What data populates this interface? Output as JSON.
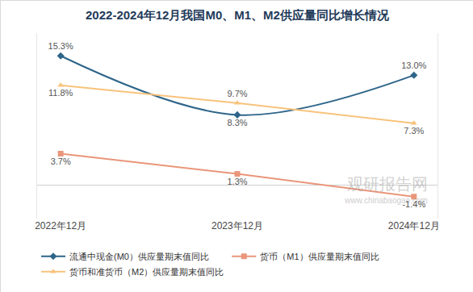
{
  "chart_data": {
    "type": "line",
    "title": "2022-2024年12月我国M0、M1、M2供应量同比增长情况",
    "categories": [
      "2022年12月",
      "2023年12月",
      "2024年12月"
    ],
    "series": [
      {
        "name": "流通中现金(M0）供应量期末值同比",
        "color": "#2e6589",
        "marker": "diamond",
        "line_style": "smooth",
        "values": [
          15.3,
          8.3,
          13.0
        ],
        "value_labels": [
          "15.3%",
          "8.3%",
          "13.0%"
        ]
      },
      {
        "name": "货币（M1）供应量期末值同比",
        "color": "#e9967a",
        "marker": "square",
        "line_style": "solid",
        "values": [
          3.7,
          1.3,
          -1.4
        ],
        "value_labels": [
          "3.7%",
          "1.3%",
          "-1.4%"
        ]
      },
      {
        "name": "货币和准货币（M2）供应量期末值同比",
        "color": "#f8c37c",
        "marker": "triangle-up",
        "line_style": "solid",
        "values": [
          11.8,
          9.7,
          7.3
        ],
        "value_labels": [
          "11.8%",
          "9.7%",
          "7.3%"
        ]
      }
    ],
    "ylim": [
      -4,
      18
    ],
    "yticks": [
      0
    ],
    "grid": true,
    "tick_labels": "x",
    "data_labels": true,
    "legend": "bottom",
    "annotations": [
      "观研报告网",
      "www.chinabaogao.com"
    ]
  }
}
